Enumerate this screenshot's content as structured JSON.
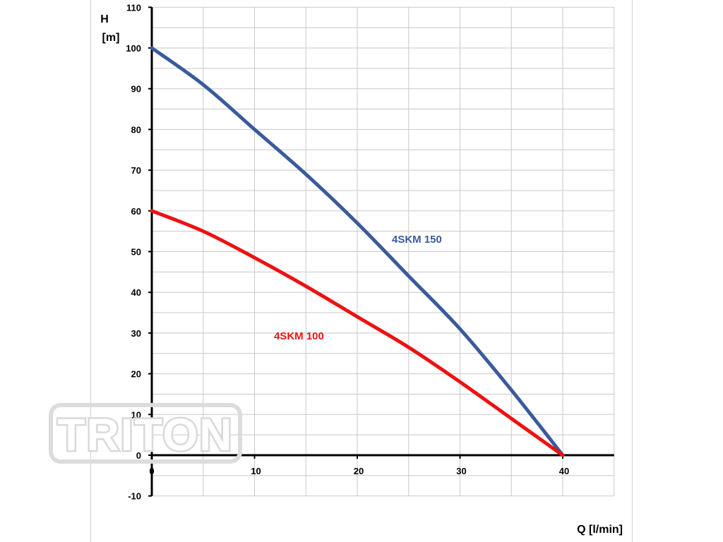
{
  "watermark": "TRITON",
  "chart_data": {
    "type": "line",
    "ylabel_top": "H",
    "ylabel_unit": "[m]",
    "xlabel": "Q [l/min]",
    "xlim": [
      0,
      45
    ],
    "ylim": [
      -10,
      110
    ],
    "xticks": [
      0,
      10,
      20,
      30,
      40
    ],
    "yticks": [
      -10,
      0,
      10,
      20,
      30,
      40,
      50,
      60,
      70,
      80,
      90,
      100,
      110
    ],
    "grid": true,
    "series": [
      {
        "name": "4SKM 150",
        "color": "#3a5a9b",
        "x": [
          0,
          5,
          10,
          15,
          20,
          25,
          30,
          35,
          40
        ],
        "y": [
          100,
          91,
          80,
          69,
          57,
          44,
          31,
          16,
          0
        ]
      },
      {
        "name": "4SKM 100",
        "color": "#ee1111",
        "x": [
          0,
          5,
          10,
          15,
          20,
          25,
          30,
          35,
          40
        ],
        "y": [
          60,
          55,
          48.5,
          41.5,
          34,
          26.5,
          18,
          9,
          0
        ]
      }
    ]
  }
}
